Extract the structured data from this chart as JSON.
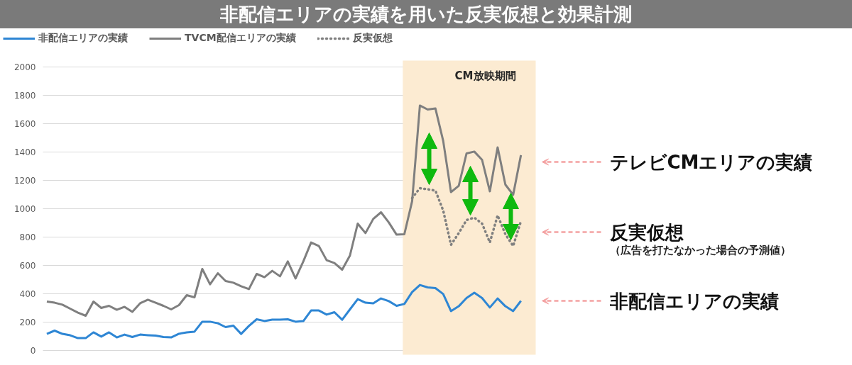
{
  "chart_data": {
    "type": "line",
    "title": "非配信エリアの実績を用いた反実仮想と効果計測",
    "categories": [
      null,
      null,
      null,
      null,
      null,
      null,
      null,
      null,
      null,
      null,
      null,
      null,
      null,
      null,
      null,
      null,
      null,
      null,
      null,
      null,
      null,
      null,
      null,
      null,
      null,
      null,
      null,
      null,
      null,
      null,
      null,
      null,
      null,
      null,
      null,
      null,
      null,
      null,
      null,
      null,
      null,
      null,
      null,
      null,
      null,
      null,
      null,
      null,
      null,
      null,
      null,
      null,
      null,
      null,
      null,
      null,
      null,
      null,
      null,
      null,
      null,
      null
    ],
    "series": [
      {
        "name": "非配信エリアの実績",
        "color": "#2e86d4",
        "line_style": "solid",
        "values": [
          117,
          140,
          117,
          107,
          87,
          87,
          128,
          98,
          128,
          92,
          112,
          95,
          112,
          108,
          105,
          95,
          92,
          118,
          128,
          133,
          203,
          203,
          192,
          165,
          175,
          117,
          173,
          220,
          208,
          217,
          217,
          220,
          203,
          207,
          282,
          282,
          253,
          270,
          217,
          290,
          362,
          337,
          332,
          367,
          348,
          315,
          328,
          412,
          462,
          445,
          440,
          398,
          278,
          312,
          370,
          407,
          370,
          303,
          367,
          312,
          278,
          350
        ]
      },
      {
        "name": "TVCM配信エリアの実績",
        "color": "#7f7f7f",
        "line_style": "solid",
        "values": [
          345,
          337,
          323,
          295,
          267,
          245,
          345,
          300,
          315,
          287,
          308,
          273,
          333,
          358,
          337,
          315,
          290,
          320,
          390,
          375,
          575,
          467,
          545,
          490,
          478,
          453,
          433,
          540,
          517,
          562,
          523,
          628,
          508,
          628,
          762,
          737,
          637,
          617,
          570,
          670,
          895,
          828,
          928,
          975,
          903,
          817,
          820,
          1053,
          1728,
          1700,
          1707,
          1478,
          1117,
          1162,
          1390,
          1403,
          1345,
          1123,
          1433,
          1170,
          1098,
          1378
        ]
      },
      {
        "name": "反実仮想",
        "color": "#808080",
        "line_style": "dotted",
        "values": [
          null,
          null,
          null,
          null,
          null,
          null,
          null,
          null,
          null,
          null,
          null,
          null,
          null,
          null,
          null,
          null,
          null,
          null,
          null,
          null,
          null,
          null,
          null,
          null,
          null,
          null,
          null,
          null,
          null,
          null,
          null,
          null,
          null,
          null,
          null,
          null,
          null,
          null,
          null,
          null,
          null,
          null,
          null,
          null,
          null,
          null,
          null,
          1075,
          1145,
          1137,
          1128,
          987,
          745,
          828,
          920,
          937,
          895,
          762,
          953,
          820,
          737,
          912
        ]
      }
    ],
    "ylim": [
      0,
      2000
    ],
    "yticks": [
      0,
      200,
      400,
      600,
      800,
      1000,
      1200,
      1400,
      1600,
      1800,
      2000
    ],
    "tick_labels": "y",
    "grid": "y",
    "legend": "top",
    "marker": "none",
    "annotations": [
      "CM放映期間",
      "テレビCMエリアの実績",
      "反実仮想",
      "（広告を打たなかった場合の予測値）",
      "非配信エリアの実績"
    ]
  }
}
